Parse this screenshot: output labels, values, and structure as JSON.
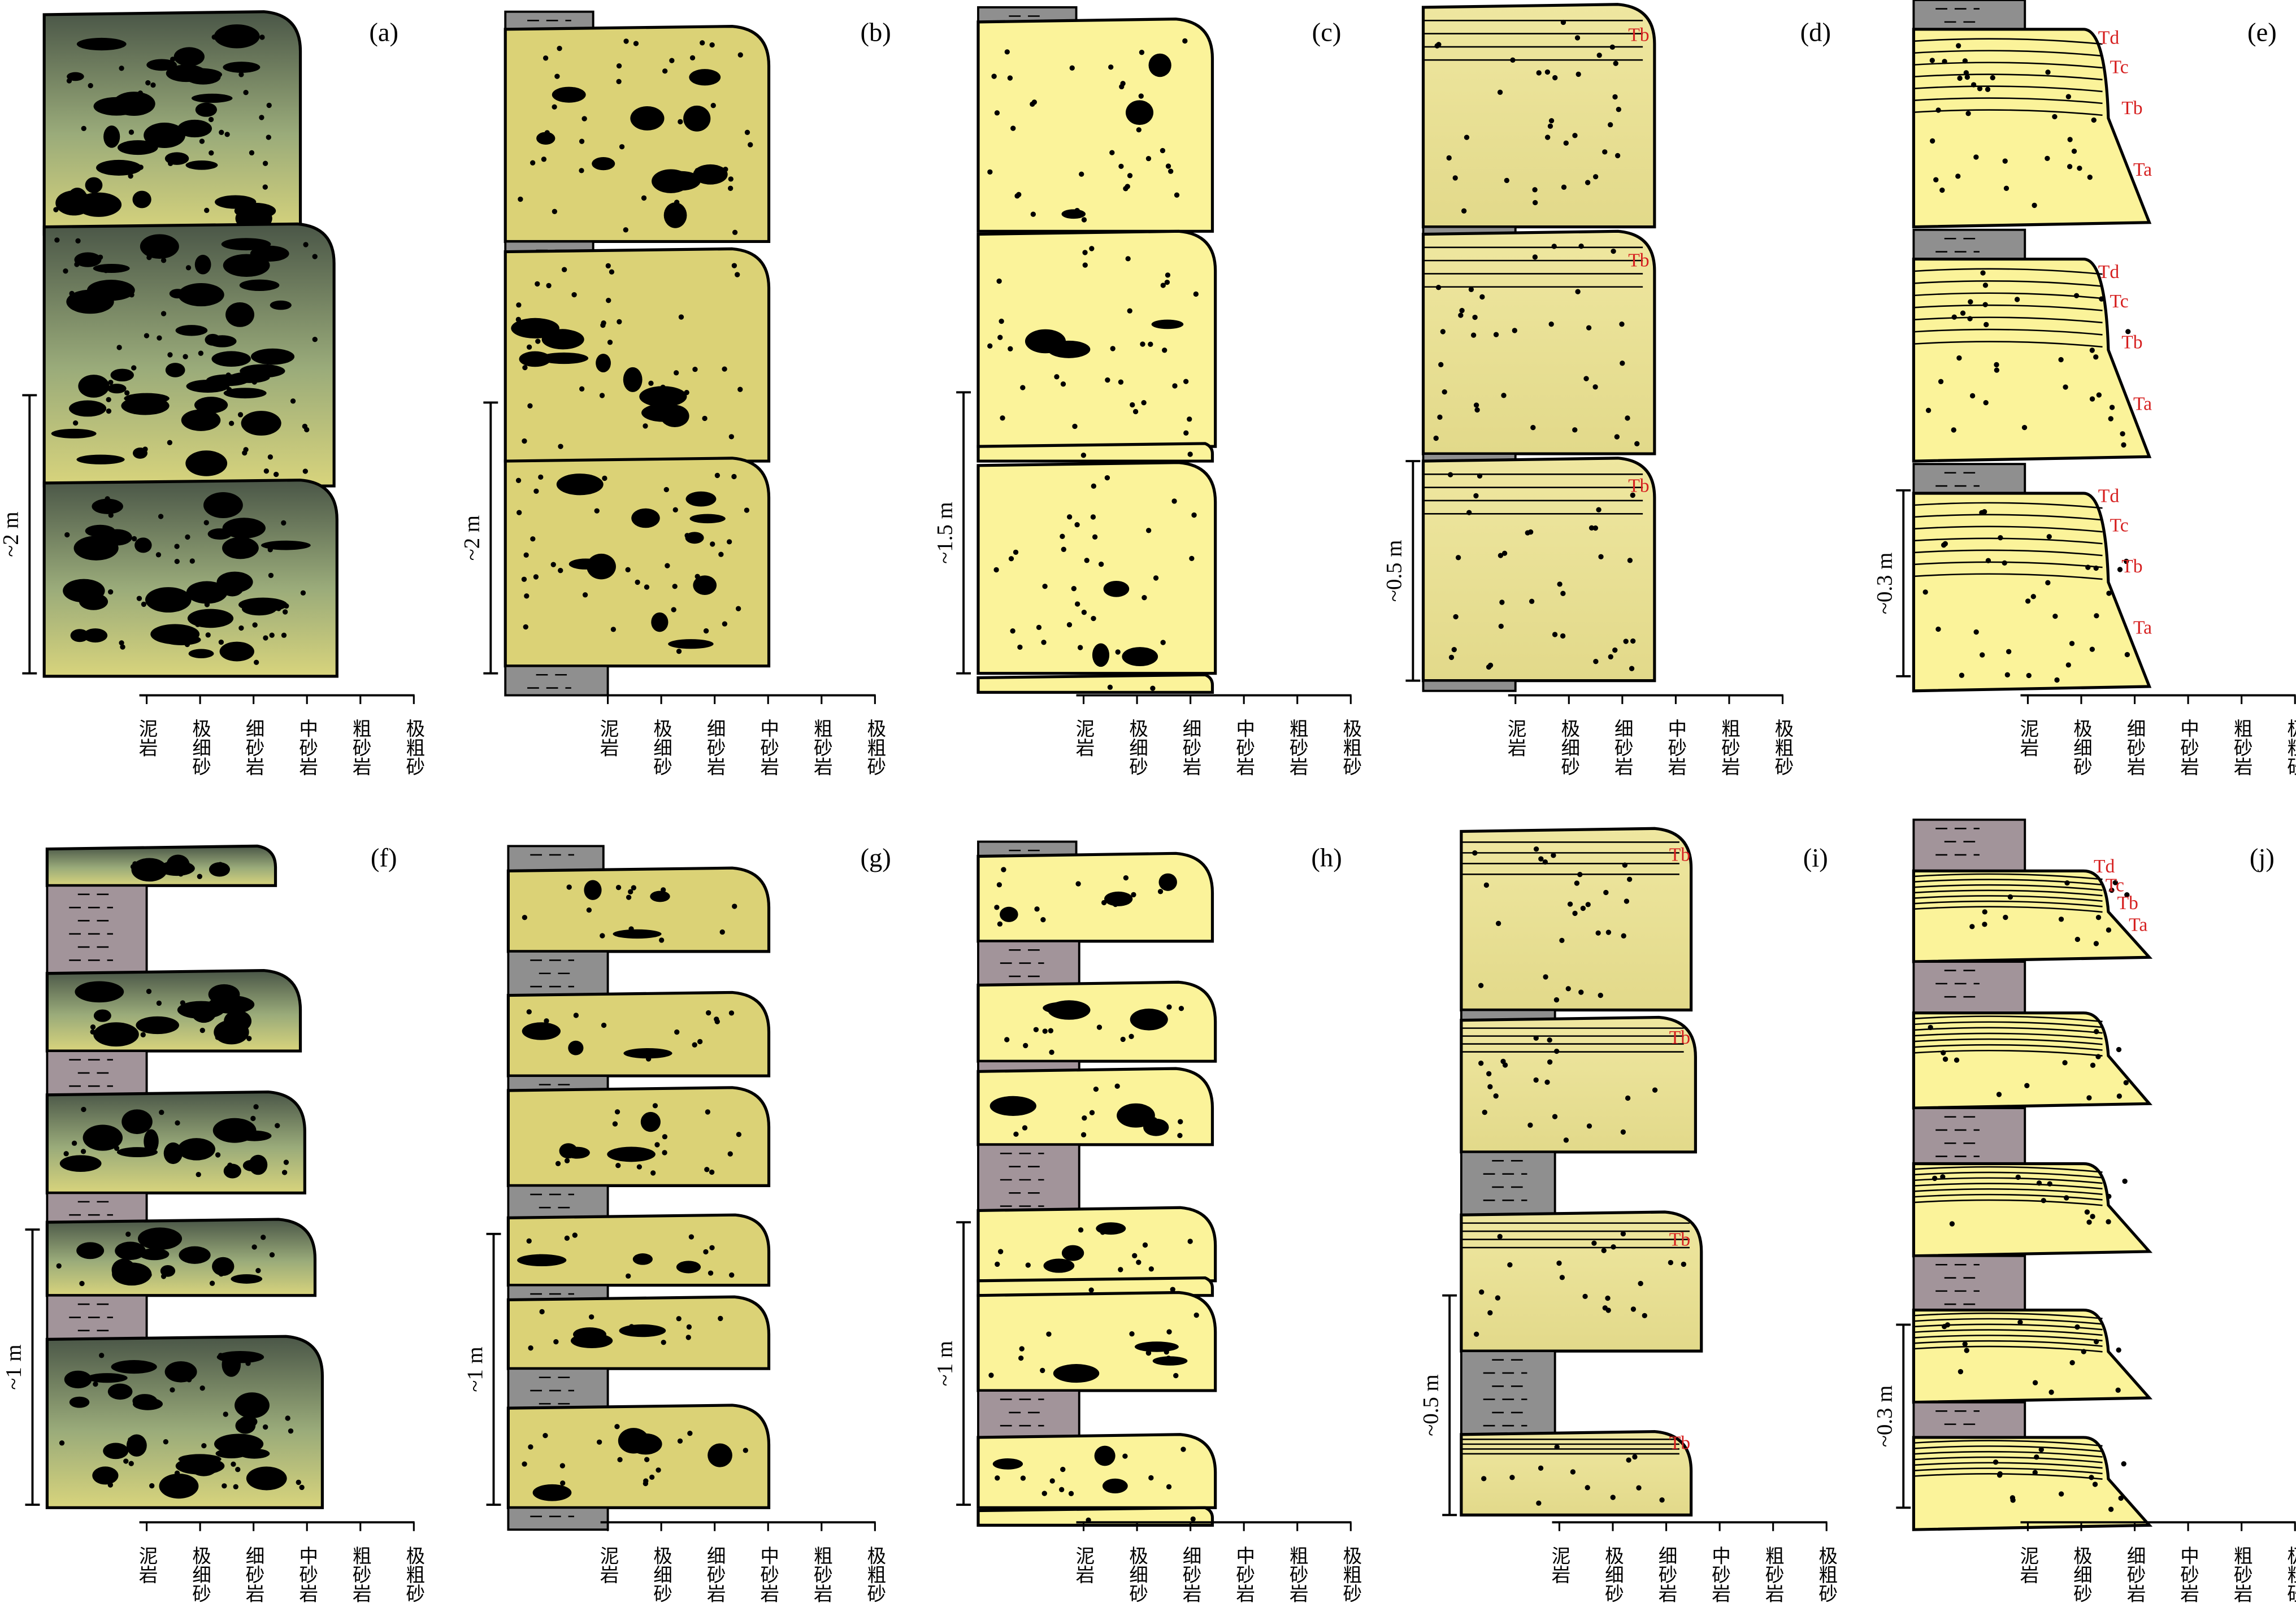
{
  "grain_size_axis": [
    "泥岩",
    "极细砂",
    "细砂岩",
    "中砂岩",
    "粗砂岩",
    "极粗砂"
  ],
  "panels": [
    {
      "label": "(a)",
      "scale": "~2 m",
      "bouma": []
    },
    {
      "label": "(b)",
      "scale": "~2 m",
      "bouma": []
    },
    {
      "label": "(c)",
      "scale": "~1.5 m",
      "bouma": []
    },
    {
      "label": "(d)",
      "scale": "~0.5 m",
      "bouma": [
        [
          "Tb"
        ],
        [
          "Tb"
        ],
        [
          "Tb"
        ]
      ]
    },
    {
      "label": "(e)",
      "scale": "~0.3 m",
      "bouma": [
        [
          "Td",
          "Tc",
          "Tb",
          "Ta"
        ],
        [
          "Td",
          "Tc",
          "Tb",
          "Ta"
        ],
        [
          "Td",
          "Tc",
          "Tb",
          "Ta"
        ]
      ]
    },
    {
      "label": "(f)",
      "scale": "~1 m",
      "bouma": []
    },
    {
      "label": "(g)",
      "scale": "~1 m",
      "bouma": []
    },
    {
      "label": "(h)",
      "scale": "~1 m",
      "bouma": []
    },
    {
      "label": "(i)",
      "scale": "~0.5 m",
      "bouma": [
        [
          "Tb"
        ],
        [
          "Tb"
        ],
        [
          "Tb"
        ],
        [
          "Tb"
        ]
      ]
    },
    {
      "label": "(j)",
      "scale": "~0.3 m",
      "bouma": [
        [
          "Td",
          "Tc",
          "Tb",
          "Ta"
        ]
      ]
    }
  ]
}
